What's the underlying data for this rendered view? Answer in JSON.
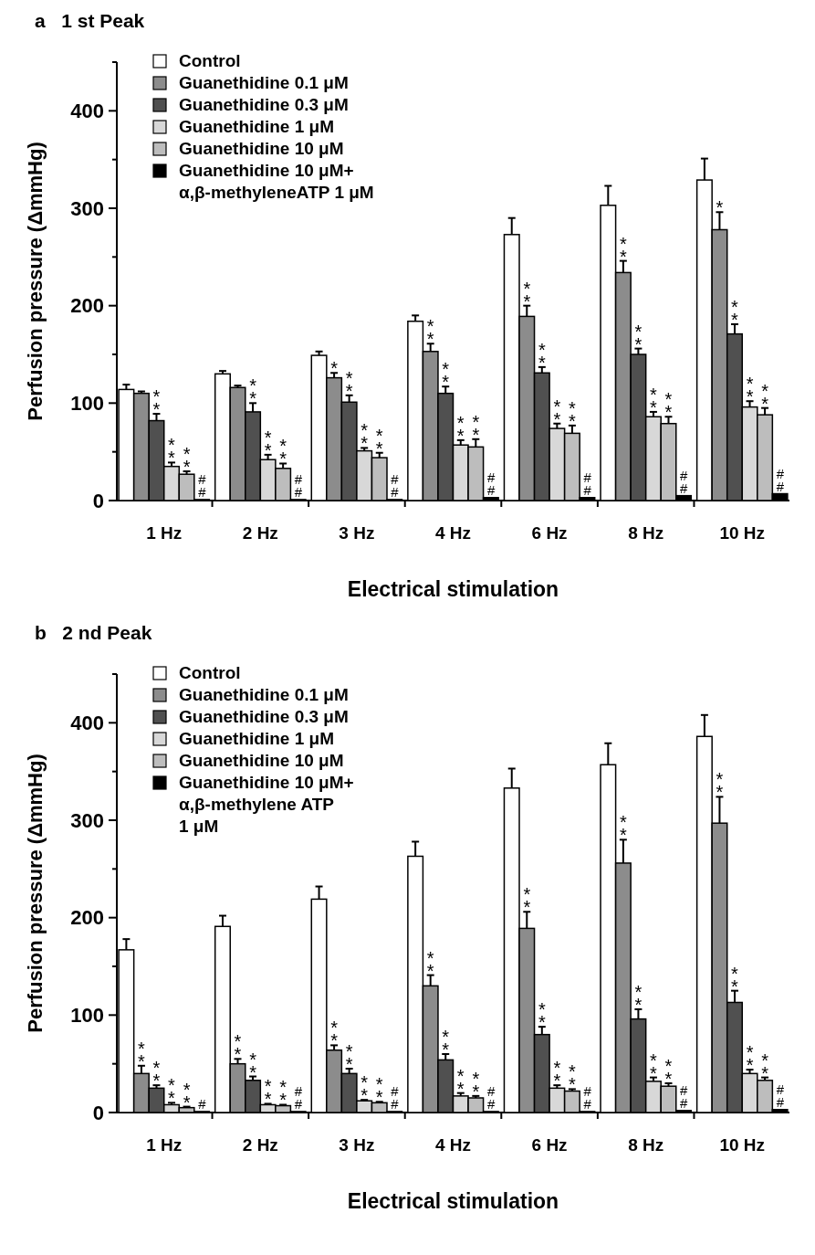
{
  "chart_data": [
    {
      "type": "bar",
      "title": "a   1 st Peak",
      "xlabel": "Electrical stimulation",
      "ylabel": "Perfusion pressure (ΔmmHg)",
      "categories": [
        "1 Hz",
        "2 Hz",
        "3 Hz",
        "4 Hz",
        "6 Hz",
        "8 Hz",
        "10 Hz"
      ],
      "ylim": [
        0,
        450
      ],
      "yticks": [
        0,
        {
          "value": 50,
          "label": null
        },
        100,
        {
          "value": 150,
          "label": null
        },
        200,
        {
          "value": 250,
          "label": null
        },
        300,
        {
          "value": 350,
          "label": null
        },
        400,
        {
          "value": 450,
          "label": null
        }
      ],
      "legend": "top left",
      "grid": false,
      "series": [
        {
          "name": "Control",
          "color": "#ffffff",
          "values": [
            114,
            130,
            149,
            184,
            273,
            303,
            329
          ],
          "errors": [
            [
              114,
              119
            ],
            [
              130,
              133
            ],
            [
              149,
              153
            ],
            [
              184,
              190
            ],
            [
              273,
              290
            ],
            [
              303,
              323
            ],
            [
              329,
              351
            ]
          ]
        },
        {
          "name": "Guanethidine 0.1 μM",
          "color": "#8c8c8c",
          "values": [
            110,
            116,
            126,
            153,
            189,
            234,
            278
          ],
          "errors": [
            [
              110,
              112
            ],
            [
              116,
              118
            ],
            [
              126,
              131
            ],
            [
              153,
              161
            ],
            [
              189,
              200
            ],
            [
              234,
              246
            ],
            [
              278,
              296
            ]
          ],
          "value_labels": [
            null,
            null,
            "*",
            "**",
            "**",
            "**",
            "*"
          ]
        },
        {
          "name": "Guanethidine 0.3 μM",
          "color": "#505050",
          "values": [
            82,
            91,
            101,
            110,
            131,
            150,
            171
          ],
          "errors": [
            [
              82,
              89
            ],
            [
              91,
              100
            ],
            [
              101,
              108
            ],
            [
              110,
              117
            ],
            [
              131,
              137
            ],
            [
              150,
              156
            ],
            [
              171,
              181
            ]
          ],
          "value_labels": [
            "**",
            "**",
            "**",
            "**",
            "**",
            "**",
            "**"
          ]
        },
        {
          "name": "Guanethidine 1 μM",
          "color": "#d8d8d8",
          "values": [
            35,
            42,
            51,
            57,
            74,
            86,
            96
          ],
          "errors": [
            [
              35,
              39
            ],
            [
              42,
              47
            ],
            [
              51,
              54
            ],
            [
              57,
              62
            ],
            [
              74,
              79
            ],
            [
              86,
              91
            ],
            [
              96,
              102
            ]
          ],
          "value_labels": [
            "**",
            "**",
            "**",
            "**",
            "**",
            "**",
            "**"
          ]
        },
        {
          "name": "Guanethidine 10 μM",
          "color": "#bdbdbd",
          "values": [
            27,
            33,
            44,
            55,
            69,
            79,
            88
          ],
          "errors": [
            [
              27,
              30
            ],
            [
              33,
              38
            ],
            [
              44,
              49
            ],
            [
              55,
              63
            ],
            [
              69,
              77
            ],
            [
              79,
              86
            ],
            [
              88,
              95
            ]
          ],
          "value_labels": [
            "**",
            "**",
            "**",
            "**",
            "**",
            "**",
            "**"
          ]
        },
        {
          "name": "Guanethidine 10 μM+\nα,β-methyleneATP 1 μM",
          "color": "#000000",
          "values": [
            1,
            1,
            1,
            3,
            3,
            5,
            7
          ],
          "value_labels": [
            "##",
            "##",
            "##",
            "##",
            "##",
            "##",
            "##"
          ]
        }
      ]
    },
    {
      "type": "bar",
      "title": "b   2 nd Peak",
      "xlabel": "Electrical stimulation",
      "ylabel": "Perfusion pressure (ΔmmHg)",
      "categories": [
        "1 Hz",
        "2 Hz",
        "3 Hz",
        "4 Hz",
        "6 Hz",
        "8 Hz",
        "10 Hz"
      ],
      "ylim": [
        0,
        450
      ],
      "yticks": [
        0,
        {
          "value": 50,
          "label": null
        },
        100,
        {
          "value": 150,
          "label": null
        },
        200,
        {
          "value": 250,
          "label": null
        },
        300,
        {
          "value": 350,
          "label": null
        },
        400,
        {
          "value": 450,
          "label": null
        }
      ],
      "legend": "top left",
      "grid": false,
      "series": [
        {
          "name": "Control",
          "color": "#ffffff",
          "values": [
            167,
            191,
            219,
            263,
            333,
            357,
            386
          ],
          "errors": [
            [
              167,
              178
            ],
            [
              191,
              202
            ],
            [
              219,
              232
            ],
            [
              263,
              278
            ],
            [
              333,
              353
            ],
            [
              357,
              379
            ],
            [
              386,
              408
            ]
          ]
        },
        {
          "name": "Guanethidine 0.1 μM",
          "color": "#8c8c8c",
          "values": [
            40,
            50,
            64,
            130,
            189,
            256,
            297
          ],
          "errors": [
            [
              40,
              48
            ],
            [
              50,
              55
            ],
            [
              64,
              69
            ],
            [
              130,
              141
            ],
            [
              189,
              206
            ],
            [
              256,
              280
            ],
            [
              297,
              324
            ]
          ],
          "value_labels": [
            "**",
            "**",
            "**",
            "**",
            "**",
            "**",
            "**"
          ]
        },
        {
          "name": "Guanethidine 0.3 μM",
          "color": "#505050",
          "values": [
            25,
            33,
            40,
            54,
            80,
            96,
            113
          ],
          "errors": [
            [
              25,
              28
            ],
            [
              33,
              37
            ],
            [
              40,
              45
            ],
            [
              54,
              60
            ],
            [
              80,
              88
            ],
            [
              96,
              106
            ],
            [
              113,
              125
            ]
          ],
          "value_labels": [
            "**",
            "**",
            "**",
            "**",
            "**",
            "**",
            "**"
          ]
        },
        {
          "name": "Guanethidine 1 μM",
          "color": "#d8d8d8",
          "values": [
            8,
            8,
            12,
            17,
            25,
            32,
            40
          ],
          "errors": [
            [
              8,
              10
            ],
            [
              8,
              9
            ],
            [
              12,
              13
            ],
            [
              17,
              20
            ],
            [
              25,
              28
            ],
            [
              32,
              36
            ],
            [
              40,
              44
            ]
          ],
          "value_labels": [
            "**",
            "**",
            "**",
            "**",
            "**",
            "**",
            "**"
          ]
        },
        {
          "name": "Guanethidine 10 μM",
          "color": "#bdbdbd",
          "values": [
            5,
            7,
            10,
            15,
            22,
            27,
            33
          ],
          "errors": [
            [
              5,
              6
            ],
            [
              7,
              8
            ],
            [
              10,
              11
            ],
            [
              15,
              17
            ],
            [
              22,
              24
            ],
            [
              27,
              30
            ],
            [
              33,
              36
            ]
          ],
          "value_labels": [
            "**",
            "**",
            "**",
            "**",
            "**",
            "**",
            "**"
          ]
        },
        {
          "name": "Guanethidine 10 μM+\nα,β-methylene ATP\n1 μM",
          "color": "#000000",
          "values": [
            1,
            1,
            1,
            1,
            1,
            2,
            3
          ],
          "value_labels": [
            "#",
            "##",
            "##",
            "##",
            "##",
            "##",
            "##"
          ]
        }
      ]
    }
  ]
}
